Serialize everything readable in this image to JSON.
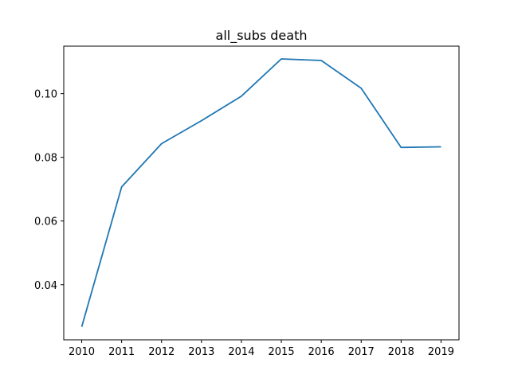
{
  "chart_data": {
    "type": "line",
    "title": "all_subs death",
    "xlabel": "",
    "ylabel": "",
    "x": [
      2010,
      2011,
      2012,
      2013,
      2014,
      2015,
      2016,
      2017,
      2018,
      2019
    ],
    "x_ticks": [
      "2010",
      "2011",
      "2012",
      "2013",
      "2014",
      "2015",
      "2016",
      "2017",
      "2018",
      "2019"
    ],
    "y_ticks": [
      "0.04",
      "0.06",
      "0.08",
      "0.10"
    ],
    "y_tick_values": [
      0.04,
      0.06,
      0.08,
      0.1
    ],
    "xlim": [
      2009.55,
      2019.45
    ],
    "ylim": [
      0.0227,
      0.1149
    ],
    "grid": false,
    "series": [
      {
        "color": "#1f77b4",
        "values": [
          0.0268,
          0.0707,
          0.0843,
          0.0915,
          0.0992,
          0.1109,
          0.1104,
          0.1017,
          0.0831,
          0.0833
        ]
      }
    ]
  }
}
